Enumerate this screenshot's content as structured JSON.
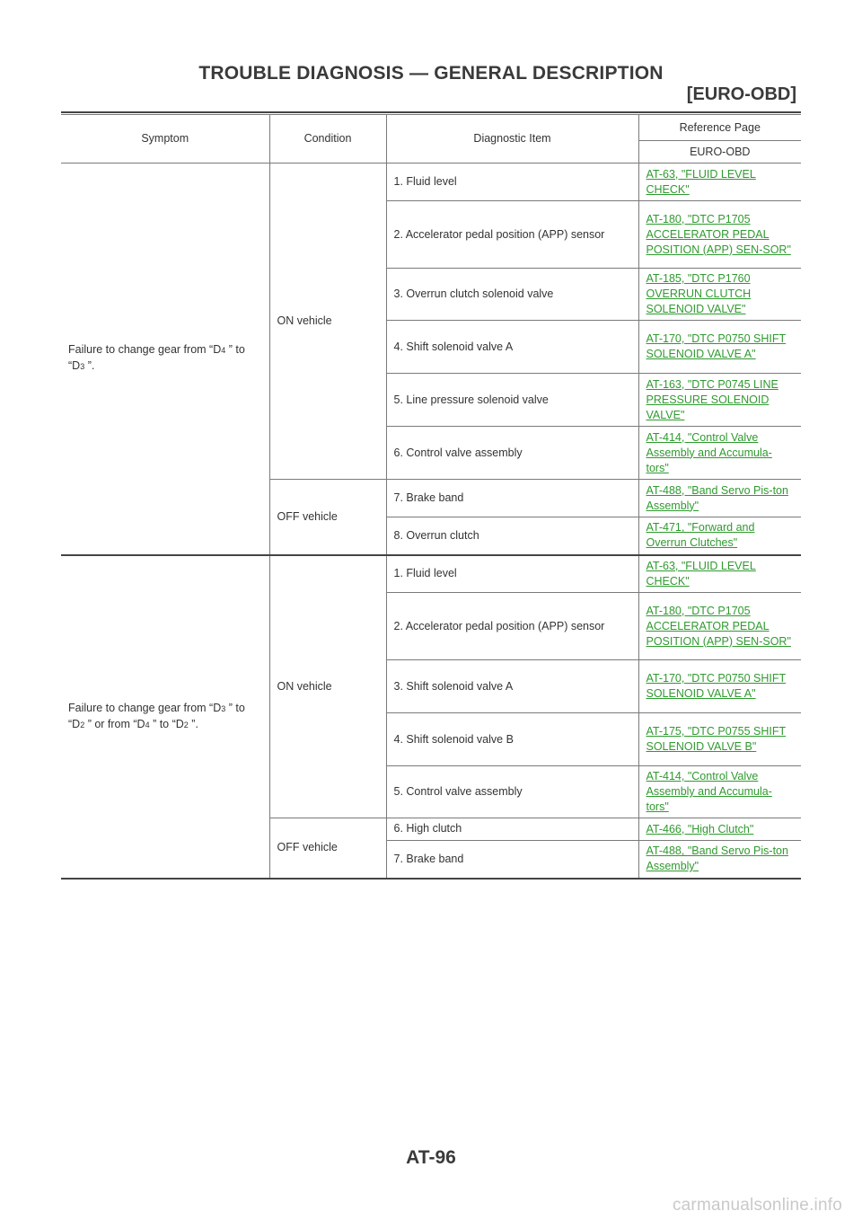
{
  "header": {
    "title": "TROUBLE DIAGNOSIS — GENERAL DESCRIPTION",
    "section": "[EURO-OBD]"
  },
  "table": {
    "col_symptom": "Symptom",
    "col_condition": "Condition",
    "col_item": "Diagnostic Item",
    "col_ref": "Reference Page",
    "col_ref_sub": "EURO-OBD",
    "group1": {
      "symptom_a": "Failure to change gear from “D",
      "symptom_b": "4",
      "symptom_c": " ” to “D",
      "symptom_d": "3",
      "symptom_e": " ”.",
      "cond_on": "ON vehicle",
      "cond_off": "OFF vehicle",
      "rows": [
        {
          "item": "1. Fluid level",
          "ref": "AT-63, \"FLUID LEVEL CHECK\""
        },
        {
          "item": "2. Accelerator pedal position (APP) sensor",
          "ref": "AT-180, \"DTC P1705 ACCELERATOR PEDAL POSITION (APP) SEN-SOR\""
        },
        {
          "item": "3. Overrun clutch solenoid valve",
          "ref": "AT-185, \"DTC P1760 OVERRUN CLUTCH SOLENOID VALVE\""
        },
        {
          "item": "4. Shift solenoid valve A",
          "ref": "AT-170, \"DTC P0750 SHIFT SOLENOID VALVE A\""
        },
        {
          "item": "5. Line pressure solenoid valve",
          "ref": "AT-163, \"DTC P0745 LINE PRESSURE SOLENOID VALVE\""
        },
        {
          "item": "6. Control valve assembly",
          "ref": "AT-414, \"Control Valve Assembly and Accumula-tors\""
        },
        {
          "item": "7. Brake band",
          "ref": "AT-488, \"Band Servo Pis-ton Assembly\""
        },
        {
          "item": "8. Overrun clutch",
          "ref": "AT-471, \"Forward and Overrun Clutches\""
        }
      ]
    },
    "group2": {
      "symptom_a": "Failure to change gear from “D",
      "symptom_b": "3",
      "symptom_c": " ” to “D",
      "symptom_d": "2",
      "symptom_e": " ” or from “D",
      "symptom_f": "4",
      "symptom_g": " ” to “D",
      "symptom_h": "2",
      "symptom_i": " ”.",
      "cond_on": "ON vehicle",
      "cond_off": "OFF vehicle",
      "rows": [
        {
          "item": "1. Fluid level",
          "ref": "AT-63, \"FLUID LEVEL CHECK\""
        },
        {
          "item": "2. Accelerator pedal position (APP) sensor",
          "ref": "AT-180, \"DTC P1705 ACCELERATOR PEDAL POSITION (APP) SEN-SOR\""
        },
        {
          "item": "3. Shift solenoid valve A",
          "ref": "AT-170, \"DTC P0750 SHIFT SOLENOID VALVE A\""
        },
        {
          "item": "4. Shift solenoid valve B",
          "ref": "AT-175, \"DTC P0755 SHIFT SOLENOID VALVE B\""
        },
        {
          "item": "5. Control valve assembly",
          "ref": "AT-414, \"Control Valve Assembly and Accumula-tors\""
        },
        {
          "item": "6. High clutch",
          "ref": "AT-466, \"High Clutch\""
        },
        {
          "item": "7. Brake band",
          "ref": "AT-488, \"Band Servo Pis-ton Assembly\""
        }
      ]
    }
  },
  "footer": {
    "page_number": "AT-96",
    "watermark": "carmanualsonline.info"
  },
  "colors": {
    "link": "#2f9a2f",
    "text": "#333333",
    "title": "#3a3a3a",
    "watermark": "#c9c9c9"
  }
}
